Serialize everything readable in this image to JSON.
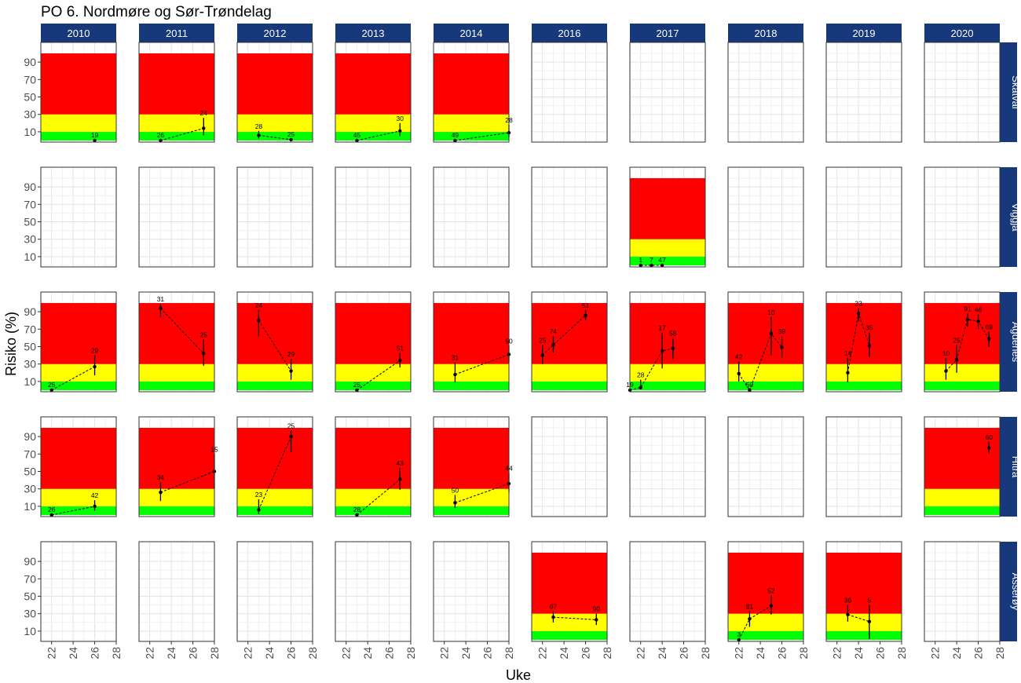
{
  "chart_data": {
    "type": "scatter",
    "title": "PO 6. Nordmøre og Sør-Trøndelag",
    "xlabel": "Uke",
    "ylabel": "Risiko (%)",
    "xlim": [
      21,
      28
    ],
    "ylim": [
      0,
      100
    ],
    "xticks": [
      "22",
      "24",
      "26",
      "28"
    ],
    "yticks": [
      "10",
      "30",
      "50",
      "70",
      "90"
    ],
    "colors": {
      "green": "#00ff00",
      "yellow": "#ffff00",
      "red": "#ff0000",
      "strip": "#17387a"
    },
    "risk_bands": [
      {
        "from": 0,
        "to": 10,
        "color": "green"
      },
      {
        "from": 10,
        "to": 30,
        "color": "yellow"
      },
      {
        "from": 30,
        "to": 100,
        "color": "red"
      }
    ],
    "columns": [
      "2010",
      "2011",
      "2012",
      "2013",
      "2014",
      "2016",
      "2017",
      "2018",
      "2019",
      "2020"
    ],
    "rows": [
      "Skatval",
      "Viggja",
      "Agdenes",
      "Hitra",
      "Asserøy"
    ],
    "panels": [
      {
        "row": "Skatval",
        "column": "2010",
        "points": [
          {
            "week": 26,
            "risk": 0,
            "lo": 0,
            "hi": 1,
            "label": "19"
          }
        ]
      },
      {
        "row": "Skatval",
        "column": "2011",
        "points": [
          {
            "week": 23,
            "risk": 0,
            "lo": 0,
            "hi": 1,
            "label": "26"
          },
          {
            "week": 27,
            "risk": 14,
            "lo": 6,
            "hi": 26,
            "label": "24"
          }
        ]
      },
      {
        "row": "Skatval",
        "column": "2012",
        "points": [
          {
            "week": 23,
            "risk": 6,
            "lo": 2,
            "hi": 11,
            "label": "28"
          },
          {
            "week": 26,
            "risk": 1,
            "lo": 0,
            "hi": 2,
            "label": "25"
          }
        ]
      },
      {
        "row": "Skatval",
        "column": "2013",
        "points": [
          {
            "week": 23,
            "risk": 0,
            "lo": 0,
            "hi": 1,
            "label": "45"
          },
          {
            "week": 27,
            "risk": 11,
            "lo": 5,
            "hi": 20,
            "label": "30"
          }
        ]
      },
      {
        "row": "Skatval",
        "column": "2014",
        "points": [
          {
            "week": 23,
            "risk": 0,
            "lo": 0,
            "hi": 1,
            "label": "49"
          },
          {
            "week": 28,
            "risk": 9,
            "lo": 4,
            "hi": 18,
            "label": "28"
          }
        ]
      },
      {
        "row": "Skatval",
        "column": "2016",
        "points": []
      },
      {
        "row": "Skatval",
        "column": "2017",
        "points": []
      },
      {
        "row": "Skatval",
        "column": "2018",
        "points": []
      },
      {
        "row": "Skatval",
        "column": "2019",
        "points": []
      },
      {
        "row": "Skatval",
        "column": "2020",
        "points": []
      },
      {
        "row": "Viggja",
        "column": "2010",
        "points": []
      },
      {
        "row": "Viggja",
        "column": "2011",
        "points": []
      },
      {
        "row": "Viggja",
        "column": "2012",
        "points": []
      },
      {
        "row": "Viggja",
        "column": "2013",
        "points": []
      },
      {
        "row": "Viggja",
        "column": "2014",
        "points": []
      },
      {
        "row": "Viggja",
        "column": "2016",
        "points": []
      },
      {
        "row": "Viggja",
        "column": "2017",
        "points": [
          {
            "week": 22,
            "risk": 0,
            "lo": 0,
            "hi": 1,
            "label": "1"
          },
          {
            "week": 23,
            "risk": 0,
            "lo": 0,
            "hi": 1,
            "label": "7"
          },
          {
            "week": 24,
            "risk": 0,
            "lo": 0,
            "hi": 1,
            "label": "47"
          }
        ]
      },
      {
        "row": "Viggja",
        "column": "2018",
        "points": []
      },
      {
        "row": "Viggja",
        "column": "2019",
        "points": []
      },
      {
        "row": "Viggja",
        "column": "2020",
        "points": []
      },
      {
        "row": "Agdenes",
        "column": "2010",
        "points": [
          {
            "week": 22,
            "risk": 0,
            "lo": 0,
            "hi": 1,
            "label": "25"
          },
          {
            "week": 26,
            "risk": 27,
            "lo": 17,
            "hi": 40,
            "label": "29"
          }
        ]
      },
      {
        "row": "Agdenes",
        "column": "2011",
        "points": [
          {
            "week": 23,
            "risk": 94,
            "lo": 84,
            "hi": 99,
            "label": "31"
          },
          {
            "week": 27,
            "risk": 42,
            "lo": 28,
            "hi": 58,
            "label": "25"
          }
        ]
      },
      {
        "row": "Agdenes",
        "column": "2012",
        "points": [
          {
            "week": 23,
            "risk": 80,
            "lo": 62,
            "hi": 92,
            "label": "24"
          },
          {
            "week": 26,
            "risk": 22,
            "lo": 12,
            "hi": 36,
            "label": "29"
          }
        ]
      },
      {
        "row": "Agdenes",
        "column": "2013",
        "points": [
          {
            "week": 23,
            "risk": 0,
            "lo": 0,
            "hi": 1,
            "label": "25"
          },
          {
            "week": 27,
            "risk": 34,
            "lo": 26,
            "hi": 43,
            "label": "51"
          }
        ]
      },
      {
        "row": "Agdenes",
        "column": "2014",
        "points": [
          {
            "week": 23,
            "risk": 18,
            "lo": 9,
            "hi": 32,
            "label": "31"
          },
          {
            "week": 28,
            "risk": 41,
            "lo": 32,
            "hi": 51,
            "label": "50"
          }
        ]
      },
      {
        "row": "Agdenes",
        "column": "2016",
        "points": [
          {
            "week": 22,
            "risk": 40,
            "lo": 30,
            "hi": 52,
            "label": "25"
          },
          {
            "week": 23,
            "risk": 52,
            "lo": 43,
            "hi": 62,
            "label": "74"
          },
          {
            "week": 26,
            "risk": 86,
            "lo": 80,
            "hi": 92,
            "label": "51"
          }
        ]
      },
      {
        "row": "Agdenes",
        "column": "2017",
        "points": [
          {
            "week": 21,
            "risk": 0,
            "lo": 0,
            "hi": 1,
            "label": "19"
          },
          {
            "week": 22,
            "risk": 3,
            "lo": 1,
            "hi": 12,
            "label": "28"
          },
          {
            "week": 24,
            "risk": 45,
            "lo": 25,
            "hi": 66,
            "label": "17"
          },
          {
            "week": 25,
            "risk": 48,
            "lo": 36,
            "hi": 60,
            "label": "58"
          }
        ]
      },
      {
        "row": "Agdenes",
        "column": "2018",
        "points": [
          {
            "week": 22,
            "risk": 19,
            "lo": 10,
            "hi": 33,
            "label": "42"
          },
          {
            "week": 23,
            "risk": 0,
            "lo": 0,
            "hi": 1,
            "label": "50"
          },
          {
            "week": 25,
            "risk": 65,
            "lo": 40,
            "hi": 84,
            "label": "10"
          },
          {
            "week": 26,
            "risk": 49,
            "lo": 37,
            "hi": 62,
            "label": "39"
          }
        ]
      },
      {
        "row": "Agdenes",
        "column": "2019",
        "points": [
          {
            "week": 23,
            "risk": 20,
            "lo": 9,
            "hi": 37,
            "label": "14"
          },
          {
            "week": 24,
            "risk": 88,
            "lo": 79,
            "hi": 94,
            "label": "33"
          },
          {
            "week": 25,
            "risk": 51,
            "lo": 38,
            "hi": 66,
            "label": "35"
          }
        ]
      },
      {
        "row": "Agdenes",
        "column": "2020",
        "points": [
          {
            "week": 23,
            "risk": 22,
            "lo": 12,
            "hi": 37,
            "label": "10"
          },
          {
            "week": 24,
            "risk": 35,
            "lo": 20,
            "hi": 52,
            "label": "25"
          },
          {
            "week": 25,
            "risk": 81,
            "lo": 73,
            "hi": 88,
            "label": "91"
          },
          {
            "week": 26,
            "risk": 79,
            "lo": 70,
            "hi": 87,
            "label": "46"
          },
          {
            "week": 27,
            "risk": 59,
            "lo": 50,
            "hi": 67,
            "label": "69"
          }
        ]
      },
      {
        "row": "Hitra",
        "column": "2010",
        "points": [
          {
            "week": 22,
            "risk": 0,
            "lo": 0,
            "hi": 1,
            "label": "26"
          },
          {
            "week": 26,
            "risk": 10,
            "lo": 5,
            "hi": 17,
            "label": "42"
          }
        ]
      },
      {
        "row": "Hitra",
        "column": "2011",
        "points": [
          {
            "week": 23,
            "risk": 26,
            "lo": 16,
            "hi": 38,
            "label": "34"
          },
          {
            "week": 28,
            "risk": 50,
            "lo": 30,
            "hi": 70,
            "label": "15"
          }
        ]
      },
      {
        "row": "Hitra",
        "column": "2012",
        "points": [
          {
            "week": 23,
            "risk": 6,
            "lo": 1,
            "hi": 18,
            "label": "23"
          },
          {
            "week": 26,
            "risk": 90,
            "lo": 72,
            "hi": 97,
            "label": "25"
          }
        ]
      },
      {
        "row": "Hitra",
        "column": "2013",
        "points": [
          {
            "week": 23,
            "risk": 0,
            "lo": 0,
            "hi": 1,
            "label": "28"
          },
          {
            "week": 27,
            "risk": 41,
            "lo": 29,
            "hi": 54,
            "label": "43"
          }
        ]
      },
      {
        "row": "Hitra",
        "column": "2014",
        "points": [
          {
            "week": 23,
            "risk": 14,
            "lo": 8,
            "hi": 23,
            "label": "50"
          },
          {
            "week": 28,
            "risk": 36,
            "lo": 26,
            "hi": 48,
            "label": "44"
          }
        ]
      },
      {
        "row": "Hitra",
        "column": "2016",
        "points": []
      },
      {
        "row": "Hitra",
        "column": "2017",
        "points": []
      },
      {
        "row": "Hitra",
        "column": "2018",
        "points": []
      },
      {
        "row": "Hitra",
        "column": "2019",
        "points": []
      },
      {
        "row": "Hitra",
        "column": "2020",
        "points": [
          {
            "week": 27,
            "risk": 77,
            "lo": 70,
            "hi": 84,
            "label": "60"
          }
        ]
      },
      {
        "row": "Asserøy",
        "column": "2010",
        "points": []
      },
      {
        "row": "Asserøy",
        "column": "2011",
        "points": []
      },
      {
        "row": "Asserøy",
        "column": "2012",
        "points": []
      },
      {
        "row": "Asserøy",
        "column": "2013",
        "points": []
      },
      {
        "row": "Asserøy",
        "column": "2014",
        "points": []
      },
      {
        "row": "Asserøy",
        "column": "2016",
        "points": [
          {
            "week": 23,
            "risk": 26,
            "lo": 20,
            "hi": 33,
            "label": "67"
          },
          {
            "week": 27,
            "risk": 23,
            "lo": 17,
            "hi": 30,
            "label": "90"
          }
        ]
      },
      {
        "row": "Asserøy",
        "column": "2017",
        "points": []
      },
      {
        "row": "Asserøy",
        "column": "2018",
        "points": [
          {
            "week": 22,
            "risk": 0,
            "lo": 0,
            "hi": 1,
            "label": "3"
          },
          {
            "week": 23,
            "risk": 24,
            "lo": 15,
            "hi": 33,
            "label": "81"
          },
          {
            "week": 25,
            "risk": 39,
            "lo": 29,
            "hi": 51,
            "label": "52"
          }
        ]
      },
      {
        "row": "Asserøy",
        "column": "2019",
        "points": [
          {
            "week": 23,
            "risk": 29,
            "lo": 21,
            "hi": 40,
            "label": "36"
          },
          {
            "week": 25,
            "risk": 21,
            "lo": 1,
            "hi": 40,
            "label": "5"
          }
        ]
      },
      {
        "row": "Asserøy",
        "column": "2020",
        "points": []
      }
    ]
  }
}
